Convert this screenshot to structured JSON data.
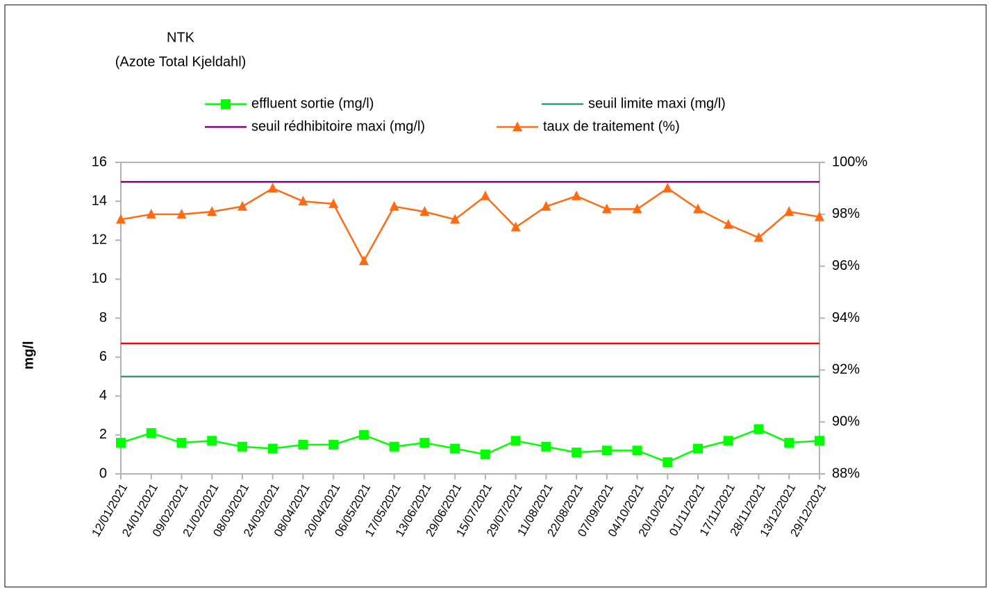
{
  "chart_data": {
    "type": "line",
    "title": "NTK",
    "subtitle": "(Azote Total Kjeldahl)",
    "ylabel": "mg/l",
    "categories": [
      "12/01/2021",
      "24/01/2021",
      "09/02/2021",
      "21/02/2021",
      "08/03/2021",
      "24/03/2021",
      "08/04/2021",
      "20/04/2021",
      "06/05/2021",
      "17/05/2021",
      "13/06/2021",
      "29/06/2021",
      "15/07/2021",
      "29/07/2021",
      "11/08/2021",
      "22/08/2021",
      "07/09/2021",
      "04/10/2021",
      "20/10/2021",
      "01/11/2021",
      "17/11/2021",
      "28/11/2021",
      "13/12/2021",
      "29/12/2021"
    ],
    "series": [
      {
        "name": "effluent sortie (mg/l)",
        "color": "#00ff00",
        "marker": "square",
        "values": [
          1.6,
          2.1,
          1.6,
          1.7,
          1.4,
          1.3,
          1.5,
          1.5,
          2.0,
          1.4,
          1.6,
          1.3,
          1.0,
          1.7,
          1.4,
          1.1,
          1.2,
          1.2,
          0.6,
          1.3,
          1.7,
          2.3,
          1.6,
          1.7
        ]
      },
      {
        "name": "seuil limite maxi (mg/l)",
        "color": "#2e9e6a",
        "values": [
          5,
          5,
          5,
          5,
          5,
          5,
          5,
          5,
          5,
          5,
          5,
          5,
          5,
          5,
          5,
          5,
          5,
          5,
          5,
          5,
          5,
          5,
          5,
          5
        ]
      },
      {
        "name": "seuil rédhibitoire maxi (mg/l)",
        "color": "#800080",
        "values": [
          15,
          15,
          15,
          15,
          15,
          15,
          15,
          15,
          15,
          15,
          15,
          15,
          15,
          15,
          15,
          15,
          15,
          15,
          15,
          15,
          15,
          15,
          15,
          15
        ]
      },
      {
        "name": "taux de traitement (%)",
        "color": "#ff6a13",
        "marker": "triangle",
        "axis": "y2",
        "values": [
          97.8,
          98.0,
          98.0,
          98.1,
          98.3,
          99.0,
          98.5,
          98.4,
          96.2,
          98.3,
          98.1,
          97.8,
          98.7,
          97.5,
          98.3,
          98.7,
          98.2,
          98.2,
          99.0,
          98.2,
          97.6,
          97.1,
          98.1,
          97.9
        ]
      },
      {
        "color": "#ff0000",
        "values": [
          6.7,
          6.7,
          6.7,
          6.7,
          6.7,
          6.7,
          6.7,
          6.7,
          6.7,
          6.7,
          6.7,
          6.7,
          6.7,
          6.7,
          6.7,
          6.7,
          6.7,
          6.7,
          6.7,
          6.7,
          6.7,
          6.7,
          6.7,
          6.7
        ]
      }
    ],
    "ylim": [
      0,
      16
    ],
    "yticks": [
      0,
      2,
      4,
      6,
      8,
      10,
      12,
      14,
      16
    ],
    "y2lim": [
      88,
      100
    ],
    "y2ticks": [
      {
        "value": 88,
        "label": "88%"
      },
      {
        "value": 90,
        "label": "90%"
      },
      {
        "value": 92,
        "label": "92%"
      },
      {
        "value": 94,
        "label": "94%"
      },
      {
        "value": 96,
        "label": "96%"
      },
      {
        "value": 98,
        "label": "98%"
      },
      {
        "value": 100,
        "label": "100%"
      }
    ],
    "grid": false,
    "legend": "top"
  }
}
